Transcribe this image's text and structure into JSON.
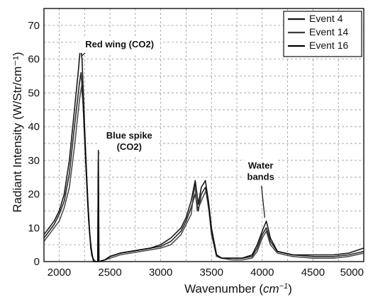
{
  "chart_data": {
    "type": "line",
    "xlabel_main": "Wavenumber (",
    "xlabel_unit": "cm",
    "xlabel_exp": "−1",
    "xlabel_close": ")",
    "ylabel": "Radiant Intensity (W/Str/cm⁻¹)",
    "xlim": [
      1850,
      5000
    ],
    "ylim": [
      0,
      75
    ],
    "x_ticks": [
      2000,
      2500,
      3000,
      3500,
      4000,
      4500,
      5000
    ],
    "y_ticks": [
      0,
      10,
      20,
      30,
      40,
      50,
      60,
      70
    ],
    "grid": true,
    "legend_position": "top-right",
    "series": [
      {
        "name": "Event 4",
        "color": "#111111",
        "points": [
          [
            1850,
            7
          ],
          [
            1900,
            9
          ],
          [
            1950,
            11
          ],
          [
            2000,
            14
          ],
          [
            2050,
            18
          ],
          [
            2100,
            26
          ],
          [
            2150,
            40
          ],
          [
            2200,
            53
          ],
          [
            2215,
            56
          ],
          [
            2230,
            50
          ],
          [
            2260,
            30
          ],
          [
            2290,
            12
          ],
          [
            2320,
            2
          ],
          [
            2340,
            0
          ],
          [
            2380,
            0
          ],
          [
            2384,
            26
          ],
          [
            2388,
            0
          ],
          [
            2450,
            0.5
          ],
          [
            2500,
            1.5
          ],
          [
            2600,
            2.5
          ],
          [
            2700,
            3
          ],
          [
            2800,
            3.5
          ],
          [
            2900,
            4
          ],
          [
            3000,
            4.5
          ],
          [
            3100,
            6
          ],
          [
            3200,
            9
          ],
          [
            3250,
            12
          ],
          [
            3300,
            16
          ],
          [
            3340,
            20
          ],
          [
            3370,
            15
          ],
          [
            3400,
            20
          ],
          [
            3440,
            22
          ],
          [
            3470,
            17
          ],
          [
            3500,
            9
          ],
          [
            3550,
            2
          ],
          [
            3600,
            1
          ],
          [
            3700,
            1
          ],
          [
            3800,
            1
          ],
          [
            3900,
            1.5
          ],
          [
            3950,
            4
          ],
          [
            4000,
            8
          ],
          [
            4040,
            10
          ],
          [
            4080,
            6
          ],
          [
            4150,
            3
          ],
          [
            4300,
            2
          ],
          [
            4500,
            1.5
          ],
          [
            4700,
            1.5
          ],
          [
            4850,
            2
          ],
          [
            5000,
            3
          ]
        ]
      },
      {
        "name": "Event 14",
        "color": "#3a3a3a",
        "points": [
          [
            1850,
            6
          ],
          [
            1900,
            8
          ],
          [
            1950,
            10
          ],
          [
            2000,
            12
          ],
          [
            2050,
            16
          ],
          [
            2100,
            22
          ],
          [
            2150,
            34
          ],
          [
            2200,
            48
          ],
          [
            2220,
            52
          ],
          [
            2240,
            45
          ],
          [
            2270,
            26
          ],
          [
            2300,
            8
          ],
          [
            2330,
            1
          ],
          [
            2360,
            0
          ],
          [
            2380,
            0
          ],
          [
            2385,
            30
          ],
          [
            2390,
            0
          ],
          [
            2450,
            0.5
          ],
          [
            2500,
            1
          ],
          [
            2600,
            2
          ],
          [
            2700,
            2.5
          ],
          [
            2800,
            3
          ],
          [
            2900,
            3.5
          ],
          [
            3000,
            4
          ],
          [
            3100,
            5
          ],
          [
            3200,
            8
          ],
          [
            3250,
            11
          ],
          [
            3300,
            14
          ],
          [
            3335,
            23
          ],
          [
            3360,
            15
          ],
          [
            3400,
            18
          ],
          [
            3445,
            21
          ],
          [
            3475,
            15
          ],
          [
            3500,
            8
          ],
          [
            3550,
            1.5
          ],
          [
            3600,
            1
          ],
          [
            3700,
            0.5
          ],
          [
            3800,
            0.5
          ],
          [
            3900,
            1
          ],
          [
            3950,
            3
          ],
          [
            4000,
            7
          ],
          [
            4040,
            9
          ],
          [
            4080,
            5
          ],
          [
            4150,
            2.5
          ],
          [
            4300,
            1.5
          ],
          [
            4500,
            1
          ],
          [
            4700,
            1
          ],
          [
            4850,
            1.5
          ],
          [
            5000,
            2.5
          ]
        ]
      },
      {
        "name": "Event 16",
        "color": "#000000",
        "points": [
          [
            1850,
            8
          ],
          [
            1900,
            10
          ],
          [
            1950,
            12
          ],
          [
            2000,
            15
          ],
          [
            2050,
            20
          ],
          [
            2100,
            30
          ],
          [
            2150,
            45
          ],
          [
            2190,
            57
          ],
          [
            2210,
            64
          ],
          [
            2225,
            60
          ],
          [
            2250,
            40
          ],
          [
            2280,
            18
          ],
          [
            2310,
            4
          ],
          [
            2340,
            0
          ],
          [
            2380,
            0
          ],
          [
            2386,
            33
          ],
          [
            2392,
            0
          ],
          [
            2450,
            0.5
          ],
          [
            2500,
            1.5
          ],
          [
            2600,
            2.5
          ],
          [
            2700,
            3
          ],
          [
            2800,
            3.5
          ],
          [
            2900,
            4
          ],
          [
            3000,
            5
          ],
          [
            3100,
            7
          ],
          [
            3200,
            10
          ],
          [
            3250,
            13
          ],
          [
            3300,
            18
          ],
          [
            3340,
            24
          ],
          [
            3370,
            17
          ],
          [
            3400,
            22
          ],
          [
            3440,
            24
          ],
          [
            3470,
            18
          ],
          [
            3500,
            10
          ],
          [
            3550,
            2
          ],
          [
            3600,
            1
          ],
          [
            3700,
            1
          ],
          [
            3800,
            1
          ],
          [
            3900,
            2
          ],
          [
            3950,
            5
          ],
          [
            4000,
            9
          ],
          [
            4040,
            12
          ],
          [
            4080,
            7
          ],
          [
            4150,
            3
          ],
          [
            4300,
            2
          ],
          [
            4500,
            2
          ],
          [
            4700,
            2
          ],
          [
            4850,
            2.5
          ],
          [
            5000,
            4
          ]
        ]
      }
    ],
    "annotations": [
      {
        "lines": [
          "Red wing (CO2)"
        ],
        "text_at": [
          2595,
          63.5
        ],
        "arrow_from": [
          2330,
          64
        ],
        "arrow_to": [
          2225,
          61
        ]
      },
      {
        "lines": [
          "Blue spike",
          "(CO2)"
        ],
        "text_at": [
          2690,
          36.5
        ],
        "arrow_from": [
          2440,
          35
        ],
        "arrow_to": [
          2395,
          32
        ]
      },
      {
        "lines": [
          "Water",
          "bands"
        ],
        "text_at": [
          3985,
          27.5
        ],
        "arrow_from": [
          3990,
          23
        ],
        "arrow_to": [
          4025,
          13
        ]
      }
    ]
  }
}
